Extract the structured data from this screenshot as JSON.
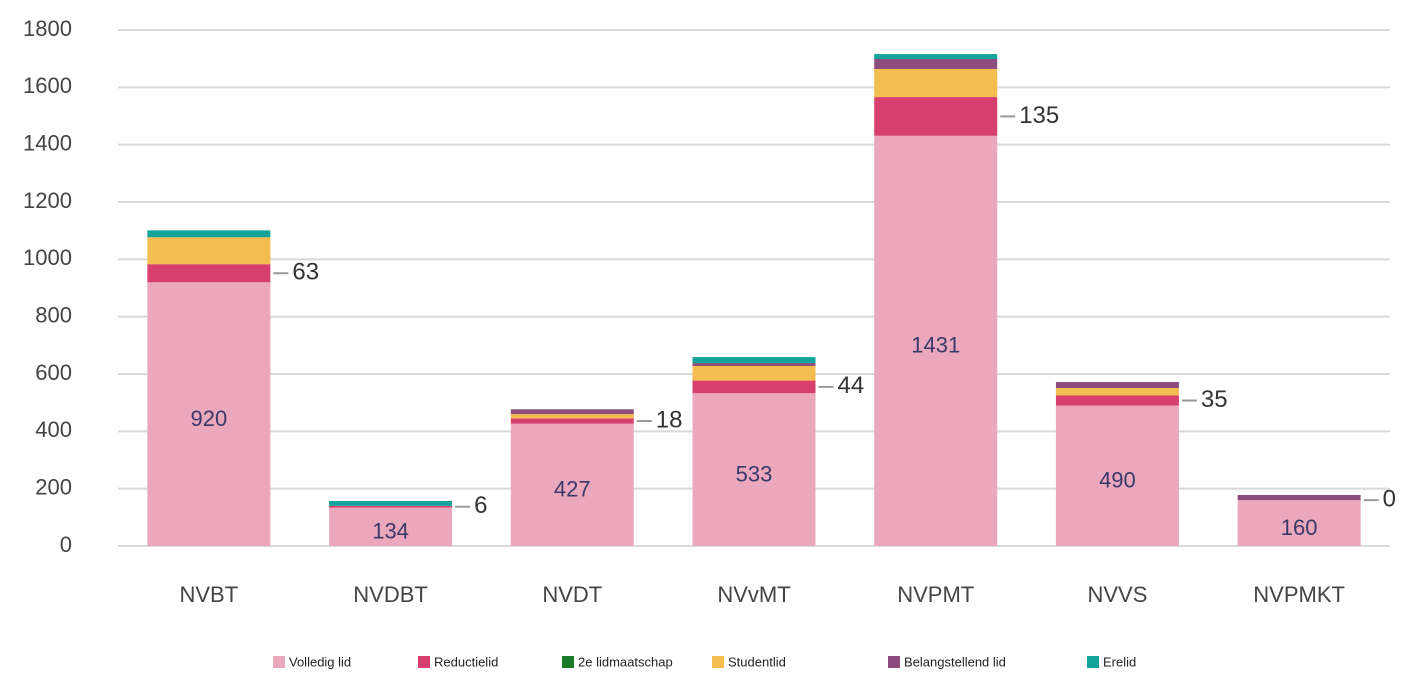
{
  "chart_data": {
    "type": "stacked_bar",
    "categories": [
      "NVBT",
      "NVDBT",
      "NVDT",
      "NVvMT",
      "NVPMT",
      "NVVS",
      "NVPMKT"
    ],
    "series": [
      {
        "name": "Volledig lid",
        "color": "#eba8bd",
        "values": [
          920,
          134,
          427,
          533,
          1431,
          490,
          160
        ]
      },
      {
        "name": "Reductielid",
        "color": "#d63f6e",
        "values": [
          63,
          6,
          18,
          44,
          135,
          35,
          0
        ]
      },
      {
        "name": "2e lidmaatschap",
        "color": "#1a7a2a",
        "values": [
          0,
          0,
          0,
          0,
          0,
          0,
          0
        ]
      },
      {
        "name": "Studentlid",
        "color": "#f5bd4f",
        "values": [
          94,
          0,
          15,
          51,
          98,
          26,
          0
        ]
      },
      {
        "name": "Belangstellend lid",
        "color": "#8e4b7e",
        "values": [
          0,
          0,
          17,
          10,
          35,
          21,
          18
        ]
      },
      {
        "name": "Erelid",
        "color": "#14a39a",
        "values": [
          24,
          17,
          0,
          21,
          17,
          0,
          0
        ]
      }
    ],
    "ylim": [
      0,
      1800
    ],
    "yticks": [
      0,
      200,
      400,
      600,
      800,
      1000,
      1200,
      1400,
      1600,
      1800
    ],
    "grid": true,
    "legend": "bottom"
  }
}
